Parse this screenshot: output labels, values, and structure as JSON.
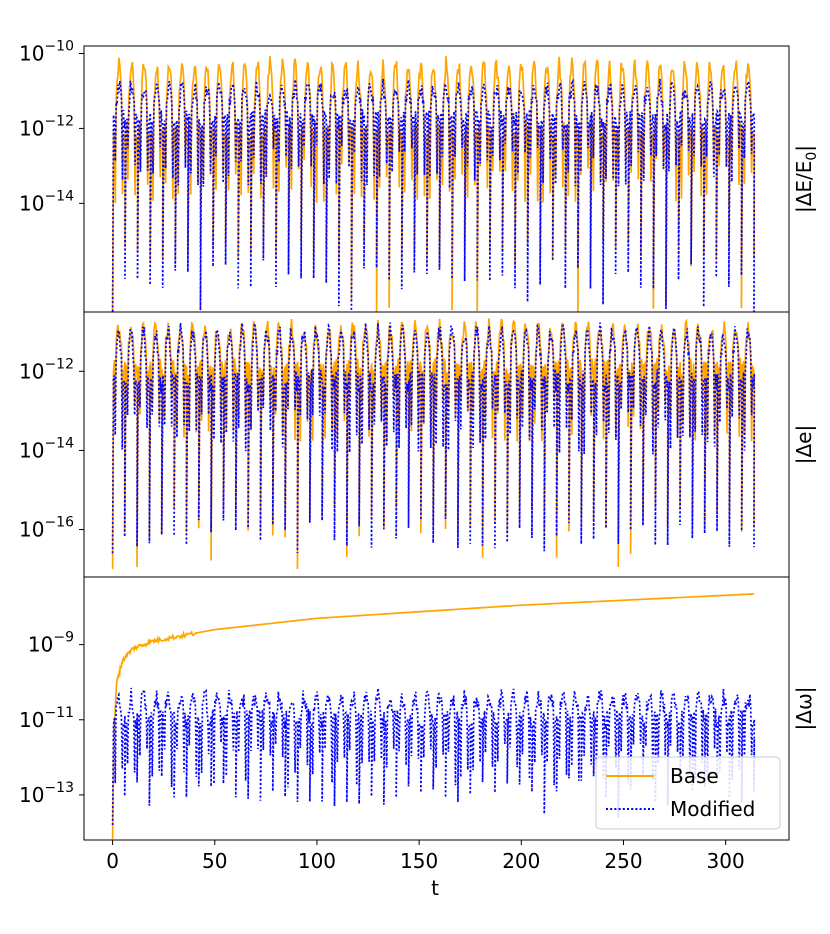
{
  "colors": {
    "base": "#ffa500",
    "modified": "#0000ff"
  },
  "chart_data": {
    "type": "line",
    "subplots": 3,
    "shared_x": true,
    "xlabel": "t",
    "xlim": [
      -14,
      331
    ],
    "x_ticks": [
      0,
      50,
      100,
      150,
      200,
      250,
      300
    ],
    "x_tick_labels": [
      "0",
      "50",
      "100",
      "150",
      "200",
      "250",
      "300"
    ],
    "x_range": [
      0,
      314
    ],
    "legend": {
      "placement": "lower-right",
      "panel": 3,
      "entries": [
        {
          "label": "Base",
          "color": "#ffa500",
          "style": "solid"
        },
        {
          "label": "Modified",
          "color": "#0000ff",
          "style": "dotted"
        }
      ]
    },
    "panels": [
      {
        "ylabel_main": "|ΔE/E",
        "ylabel_sub": "0",
        "ylabel_end": "|",
        "yscale": "log",
        "ylim_exp": [
          -16.9,
          -9.8
        ],
        "tick_exponents": [
          -10,
          -12,
          -14
        ],
        "tick_labels": [
          {
            "base": "10",
            "exp": "−10"
          },
          {
            "base": "10",
            "exp": "−12"
          },
          {
            "base": "10",
            "exp": "−14"
          }
        ],
        "series": [
          {
            "name": "Base",
            "color": "#ffa500",
            "style": "solid",
            "oscillations": 51,
            "peak_exp": -10.3,
            "mid_exp": -12.2,
            "trough_exp": -15.0,
            "deep_trough_exp": -17.0
          },
          {
            "name": "Modified",
            "color": "#0000ff",
            "style": "dotted",
            "oscillations": 51,
            "peak_exp": -10.9,
            "mid_exp": -11.8,
            "trough_exp": -15.5,
            "deep_trough_exp": -17.0
          }
        ]
      },
      {
        "ylabel_main": "|Δe|",
        "ylabel_sub": "",
        "ylabel_end": "",
        "yscale": "log",
        "ylim_exp": [
          -17.2,
          -10.5
        ],
        "tick_exponents": [
          -12,
          -14,
          -16
        ],
        "tick_labels": [
          {
            "base": "10",
            "exp": "−12"
          },
          {
            "base": "10",
            "exp": "−14"
          },
          {
            "base": "10",
            "exp": "−16"
          }
        ],
        "series": [
          {
            "name": "Base",
            "color": "#ffa500",
            "style": "solid",
            "oscillations": 52,
            "peak_exp": -10.9,
            "mid_exp": -12.0,
            "trough_exp": -15.4,
            "deep_trough_exp": -17.0
          },
          {
            "name": "Modified",
            "color": "#0000ff",
            "style": "dotted",
            "oscillations": 52,
            "peak_exp": -11.0,
            "mid_exp": -12.3,
            "trough_exp": -15.7,
            "deep_trough_exp": -16.6
          }
        ]
      },
      {
        "ylabel_main": "|Δω|",
        "ylabel_sub": "",
        "ylabel_end": "",
        "yscale": "log",
        "ylim_exp": [
          -14.2,
          -7.2
        ],
        "tick_exponents": [
          -9,
          -11,
          -13
        ],
        "tick_labels": [
          {
            "base": "10",
            "exp": "−9"
          },
          {
            "base": "10",
            "exp": "−11"
          },
          {
            "base": "10",
            "exp": "−13"
          }
        ],
        "series": [
          {
            "name": "Base",
            "color": "#ffa500",
            "style": "solid",
            "growth": [
              [
                0,
                -14.2
              ],
              [
                0.5,
                -11.5
              ],
              [
                2,
                -10.0
              ],
              [
                5,
                -9.4
              ],
              [
                10,
                -9.1
              ],
              [
                20,
                -8.9
              ],
              [
                50,
                -8.6
              ],
              [
                100,
                -8.3
              ],
              [
                200,
                -7.95
              ],
              [
                314,
                -7.65
              ]
            ]
          },
          {
            "name": "Modified",
            "color": "#0000ff",
            "style": "dotted",
            "oscillations": 52,
            "peak_exp": -10.4,
            "mid_exp": -11.0,
            "trough_exp": -12.5,
            "deep_trough_exp": -13.8
          }
        ]
      }
    ]
  }
}
